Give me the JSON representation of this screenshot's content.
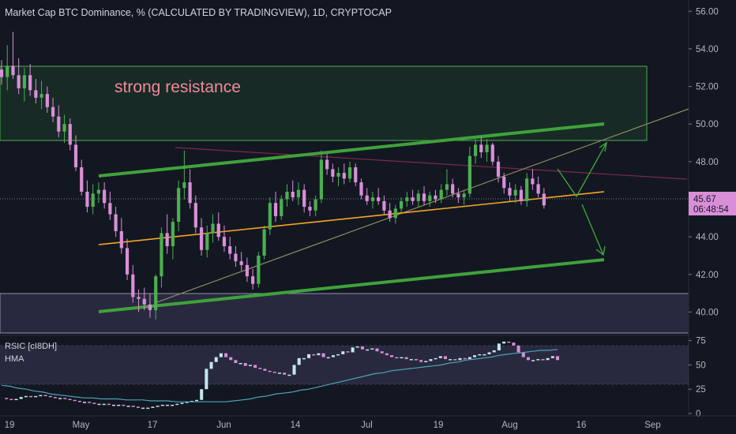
{
  "header": {
    "title": "Market Cap BTC Dominance, % (CALCULATED BY TRADINGVIEW), 1D, CRYPTOCAP"
  },
  "annotations": {
    "resistance_label": "strong resistance"
  },
  "price_tag": {
    "value": "45.67",
    "countdown": "06:48:54"
  },
  "colors": {
    "background": "#131722",
    "up_candle": "#4caf50",
    "down_candle": "#d98fd8",
    "trendline": "#3fa23a",
    "support_line": "#f5a623",
    "axis_text": "#b2b5be",
    "rsi_up": "#c6e6ee",
    "rsi_down": "#d98fd8",
    "hma": "#4fa3b5"
  },
  "chart_data": [
    {
      "type": "candlestick",
      "title": "Market Cap BTC Dominance, % (CALCULATED BY TRADINGVIEW), 1D, CRYPTOCAP",
      "x_tick_labels": [
        "19",
        "May",
        "17",
        "Jun",
        "14",
        "Jul",
        "19",
        "Aug",
        "16",
        "Sep"
      ],
      "y_tick_labels": [
        "40.00",
        "42.00",
        "44.00",
        "46.00",
        "48.00",
        "50.00",
        "52.00",
        "54.00",
        "56.00"
      ],
      "ylim": [
        38.8,
        56.6
      ],
      "grid": false,
      "last_price": 45.67,
      "series": [
        {
          "name": "",
          "values": [
            [
              52.9,
              53.4,
              52.1,
              52.5
            ],
            [
              52.5,
              54.2,
              51.8,
              53.1
            ],
            [
              53.1,
              54.9,
              52.4,
              52.6
            ],
            [
              52.6,
              53.5,
              51.6,
              51.9
            ],
            [
              51.9,
              53.0,
              51.2,
              52.6
            ],
            [
              52.6,
              53.2,
              51.5,
              51.8
            ],
            [
              51.8,
              52.4,
              51.1,
              51.4
            ],
            [
              51.4,
              52.3,
              50.8,
              51.6
            ],
            [
              51.6,
              52.0,
              50.6,
              50.9
            ],
            [
              50.9,
              51.4,
              50.1,
              50.4
            ],
            [
              50.4,
              51.0,
              49.3,
              49.6
            ],
            [
              49.6,
              50.5,
              49.0,
              50.0
            ],
            [
              50.0,
              50.3,
              48.6,
              48.9
            ],
            [
              48.9,
              49.4,
              47.5,
              47.7
            ],
            [
              47.7,
              48.1,
              46.2,
              46.4
            ],
            [
              46.4,
              47.0,
              45.3,
              45.6
            ],
            [
              45.6,
              46.8,
              45.2,
              46.3
            ],
            [
              46.3,
              46.9,
              45.8,
              46.5
            ],
            [
              46.5,
              46.9,
              45.5,
              45.8
            ],
            [
              45.8,
              46.4,
              44.9,
              45.2
            ],
            [
              45.2,
              45.6,
              44.0,
              44.3
            ],
            [
              44.3,
              45.0,
              43.1,
              43.4
            ],
            [
              43.4,
              43.9,
              41.7,
              42.0
            ],
            [
              42.0,
              42.5,
              40.5,
              40.8
            ],
            [
              40.8,
              41.2,
              40.0,
              40.7
            ],
            [
              40.7,
              41.3,
              40.1,
              40.4
            ],
            [
              40.4,
              41.0,
              39.7,
              40.1
            ],
            [
              40.1,
              42.0,
              39.6,
              41.9
            ],
            [
              41.9,
              44.5,
              41.3,
              44.2
            ],
            [
              44.2,
              45.2,
              43.1,
              43.5
            ],
            [
              43.5,
              45.0,
              42.8,
              44.8
            ],
            [
              44.8,
              47.0,
              44.3,
              46.6
            ],
            [
              46.6,
              48.6,
              46.0,
              46.9
            ],
            [
              46.9,
              47.6,
              45.5,
              45.8
            ],
            [
              45.8,
              46.2,
              44.2,
              44.5
            ],
            [
              44.5,
              45.0,
              43.0,
              43.3
            ],
            [
              43.3,
              44.6,
              42.9,
              44.2
            ],
            [
              44.2,
              45.2,
              43.7,
              44.7
            ],
            [
              44.7,
              45.3,
              43.8,
              44.0
            ],
            [
              44.0,
              44.6,
              43.2,
              43.5
            ],
            [
              43.5,
              44.0,
              42.8,
              43.1
            ],
            [
              43.1,
              43.5,
              42.4,
              42.7
            ],
            [
              42.7,
              43.2,
              42.2,
              42.5
            ],
            [
              42.5,
              42.9,
              41.6,
              41.9
            ],
            [
              41.9,
              42.3,
              41.2,
              41.5
            ],
            [
              41.5,
              43.2,
              41.3,
              43.0
            ],
            [
              43.0,
              44.6,
              42.8,
              44.4
            ],
            [
              44.4,
              46.1,
              44.1,
              45.8
            ],
            [
              45.8,
              46.4,
              44.8,
              45.1
            ],
            [
              45.1,
              46.2,
              44.9,
              46.0
            ],
            [
              46.0,
              46.8,
              45.6,
              46.4
            ],
            [
              46.4,
              47.0,
              45.9,
              46.1
            ],
            [
              46.1,
              46.9,
              45.7,
              46.5
            ],
            [
              46.5,
              46.8,
              45.3,
              45.6
            ],
            [
              45.6,
              45.9,
              45.1,
              45.4
            ],
            [
              45.4,
              46.2,
              45.1,
              46.0
            ],
            [
              46.0,
              48.6,
              45.8,
              48.1
            ],
            [
              48.1,
              48.4,
              47.3,
              47.6
            ],
            [
              47.6,
              47.9,
              46.9,
              47.2
            ],
            [
              47.2,
              47.7,
              46.7,
              47.4
            ],
            [
              47.4,
              47.9,
              46.8,
              47.1
            ],
            [
              47.1,
              48.0,
              46.9,
              47.7
            ],
            [
              47.7,
              47.9,
              46.7,
              46.9
            ],
            [
              46.9,
              47.1,
              46.0,
              46.2
            ],
            [
              46.2,
              46.6,
              45.7,
              45.9
            ],
            [
              45.9,
              46.4,
              45.5,
              46.1
            ],
            [
              46.1,
              46.6,
              45.7,
              45.9
            ],
            [
              45.9,
              46.2,
              45.2,
              45.4
            ],
            [
              45.4,
              45.8,
              44.8,
              45.0
            ],
            [
              45.0,
              45.7,
              44.7,
              45.5
            ],
            [
              45.5,
              46.1,
              45.3,
              45.9
            ],
            [
              45.9,
              46.4,
              45.6,
              46.1
            ],
            [
              46.1,
              46.5,
              45.7,
              45.9
            ],
            [
              45.9,
              46.5,
              45.6,
              46.3
            ],
            [
              46.3,
              46.7,
              45.7,
              45.9
            ],
            [
              45.9,
              46.4,
              45.6,
              46.2
            ],
            [
              46.2,
              46.5,
              45.8,
              46.0
            ],
            [
              46.0,
              46.8,
              45.8,
              46.5
            ],
            [
              46.5,
              47.6,
              46.2,
              46.8
            ],
            [
              46.8,
              47.1,
              46.1,
              46.3
            ],
            [
              46.3,
              46.6,
              45.8,
              46.1
            ],
            [
              46.1,
              46.5,
              45.7,
              46.3
            ],
            [
              46.3,
              48.8,
              46.1,
              48.3
            ],
            [
              48.3,
              49.2,
              47.9,
              48.9
            ],
            [
              48.9,
              49.3,
              48.2,
              48.5
            ],
            [
              48.5,
              49.2,
              48.0,
              48.9
            ],
            [
              48.9,
              49.0,
              47.8,
              48.0
            ],
            [
              48.0,
              48.3,
              46.9,
              47.2
            ],
            [
              47.2,
              47.4,
              46.3,
              46.6
            ],
            [
              46.6,
              46.9,
              45.9,
              46.2
            ],
            [
              46.2,
              46.8,
              45.8,
              46.5
            ],
            [
              46.5,
              46.7,
              45.7,
              45.9
            ],
            [
              45.9,
              47.4,
              45.6,
              47.1
            ],
            [
              47.1,
              47.6,
              46.5,
              46.8
            ],
            [
              46.8,
              47.2,
              46.1,
              46.3
            ],
            [
              46.3,
              46.6,
              45.5,
              45.67
            ]
          ]
        }
      ],
      "annotations": [
        "strong resistance"
      ]
    },
    {
      "type": "line",
      "title": "RSIC [cI8DH]",
      "series_labels": [
        "RSIC [cI8DH]",
        "HMA"
      ],
      "y_tick_labels": [
        "0",
        "25",
        "50",
        "75"
      ],
      "ylim": [
        0,
        78
      ],
      "band": [
        30,
        70
      ],
      "series": [
        {
          "name": "RSIC [cI8DH]",
          "values": [
            16,
            15,
            14,
            15,
            17,
            18,
            17,
            18,
            19,
            18,
            17,
            16,
            16,
            15,
            14,
            13,
            12,
            12,
            11,
            10,
            10,
            10,
            9,
            9,
            9,
            8,
            8,
            7,
            6,
            6,
            6,
            7,
            8,
            9,
            9,
            9,
            10,
            11,
            12,
            13,
            14,
            25,
            46,
            53,
            58,
            62,
            58,
            55,
            52,
            52,
            49,
            50,
            47,
            46,
            44,
            43,
            42,
            42,
            40,
            40,
            50,
            57,
            57,
            61,
            60,
            62,
            58,
            58,
            60,
            61,
            64,
            63,
            68,
            69,
            66,
            66,
            67,
            64,
            62,
            60,
            58,
            57,
            58,
            56,
            56,
            55,
            53,
            54,
            56,
            57,
            59,
            56,
            56,
            55,
            57,
            56,
            58,
            60,
            61,
            61,
            63,
            65,
            72,
            74,
            73,
            70,
            63,
            58,
            55,
            55,
            56,
            55,
            57,
            59,
            55
          ]
        },
        {
          "name": "HMA",
          "values": [
            29,
            28,
            26,
            25,
            23,
            22,
            20,
            19,
            18,
            17,
            16,
            16,
            15,
            15,
            15,
            14,
            14,
            14,
            13,
            13,
            13,
            12,
            12,
            12,
            12,
            12,
            12,
            12,
            13,
            14,
            15,
            17,
            18,
            20,
            21,
            22,
            24,
            25,
            27,
            29,
            31,
            33,
            35,
            37,
            39,
            41,
            42,
            44,
            45,
            46,
            47,
            48,
            49,
            50,
            52,
            53,
            55,
            56,
            57,
            58,
            60,
            61,
            62,
            63,
            64,
            65,
            65,
            66
          ]
        }
      ]
    }
  ]
}
